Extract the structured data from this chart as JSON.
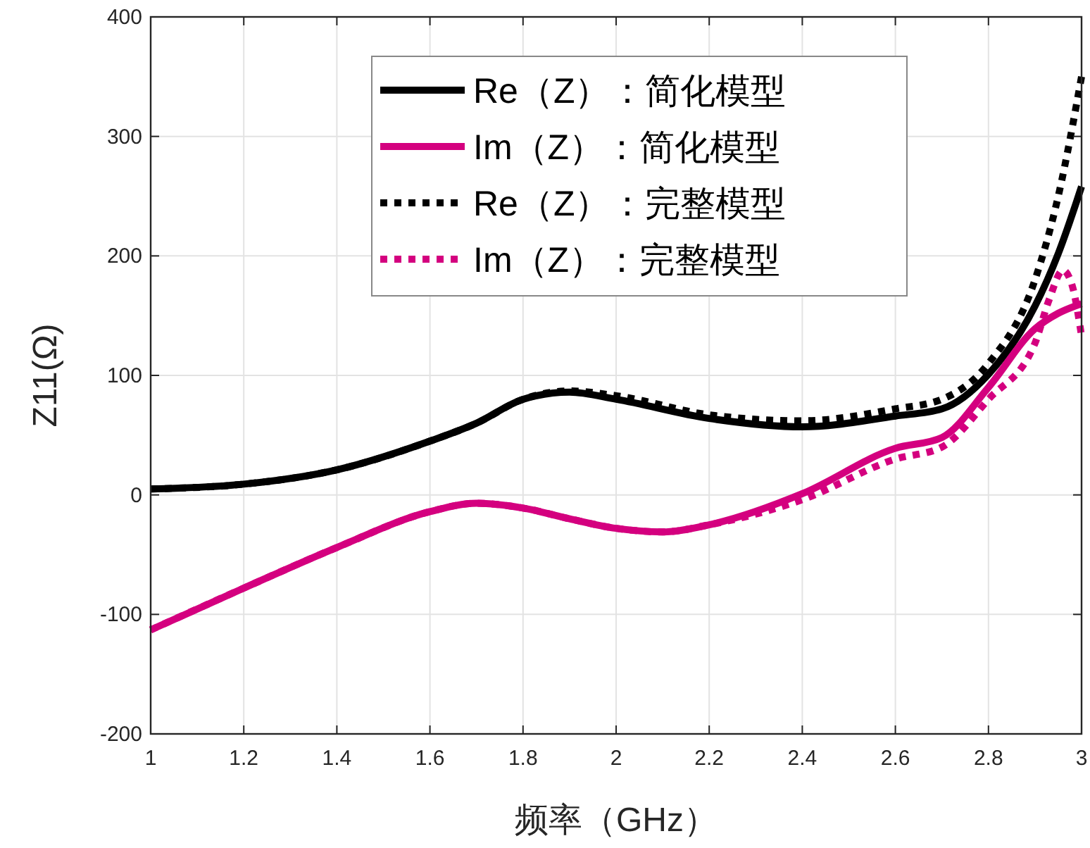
{
  "chart_data": {
    "type": "line",
    "xlabel": "频率（GHz）",
    "ylabel": "Z11(Ω)",
    "xlim": [
      1,
      3
    ],
    "ylim": [
      -200,
      400
    ],
    "xticks": [
      1,
      1.2,
      1.4,
      1.6,
      1.8,
      2,
      2.2,
      2.4,
      2.6,
      2.8,
      3
    ],
    "yticks": [
      -200,
      -100,
      0,
      100,
      200,
      300,
      400
    ],
    "grid": true,
    "legend": "top right",
    "series": [
      {
        "name": "Re（Z）：简化模型",
        "color": "#000000",
        "line_style": "solid",
        "x": [
          1,
          1.2,
          1.4,
          1.6,
          1.7,
          1.8,
          1.9,
          2,
          2.2,
          2.4,
          2.6,
          2.7,
          2.8,
          2.9,
          2.95,
          3
        ],
        "values": [
          5,
          9,
          21,
          45,
          60,
          80,
          86,
          80,
          64,
          57,
          66,
          72,
          101,
          158,
          202,
          258
        ]
      },
      {
        "name": "Im（Z）：简化模型",
        "color": "#d4007f",
        "line_style": "solid",
        "x": [
          1,
          1.2,
          1.4,
          1.6,
          1.7,
          1.8,
          1.9,
          2,
          2.1,
          2.2,
          2.4,
          2.6,
          2.7,
          2.8,
          2.9,
          2.95,
          3
        ],
        "values": [
          -113,
          -78,
          -44,
          -14,
          -7,
          -11,
          -20,
          -28,
          -31,
          -25,
          1,
          39,
          48,
          90,
          139,
          152,
          160
        ]
      },
      {
        "name": "Re（Z）：完整模型",
        "color": "#000000",
        "line_style": "dotted",
        "x": [
          1,
          1.2,
          1.4,
          1.6,
          1.7,
          1.8,
          1.9,
          2,
          2.2,
          2.4,
          2.6,
          2.7,
          2.8,
          2.9,
          2.95,
          3
        ],
        "values": [
          5,
          9,
          21,
          45,
          60,
          80,
          87,
          83,
          67,
          62,
          72,
          80,
          110,
          180,
          250,
          350
        ]
      },
      {
        "name": "Im（Z）：完整模型",
        "color": "#d4007f",
        "line_style": "dotted",
        "x": [
          1,
          1.2,
          1.4,
          1.6,
          1.7,
          1.8,
          1.9,
          2,
          2.1,
          2.2,
          2.4,
          2.6,
          2.7,
          2.8,
          2.9,
          2.93,
          2.96,
          2.98,
          3
        ],
        "values": [
          -113,
          -78,
          -44,
          -14,
          -7,
          -11,
          -20,
          -28,
          -31,
          -25,
          -4,
          30,
          40,
          80,
          127,
          163,
          188,
          175,
          133
        ]
      }
    ]
  }
}
